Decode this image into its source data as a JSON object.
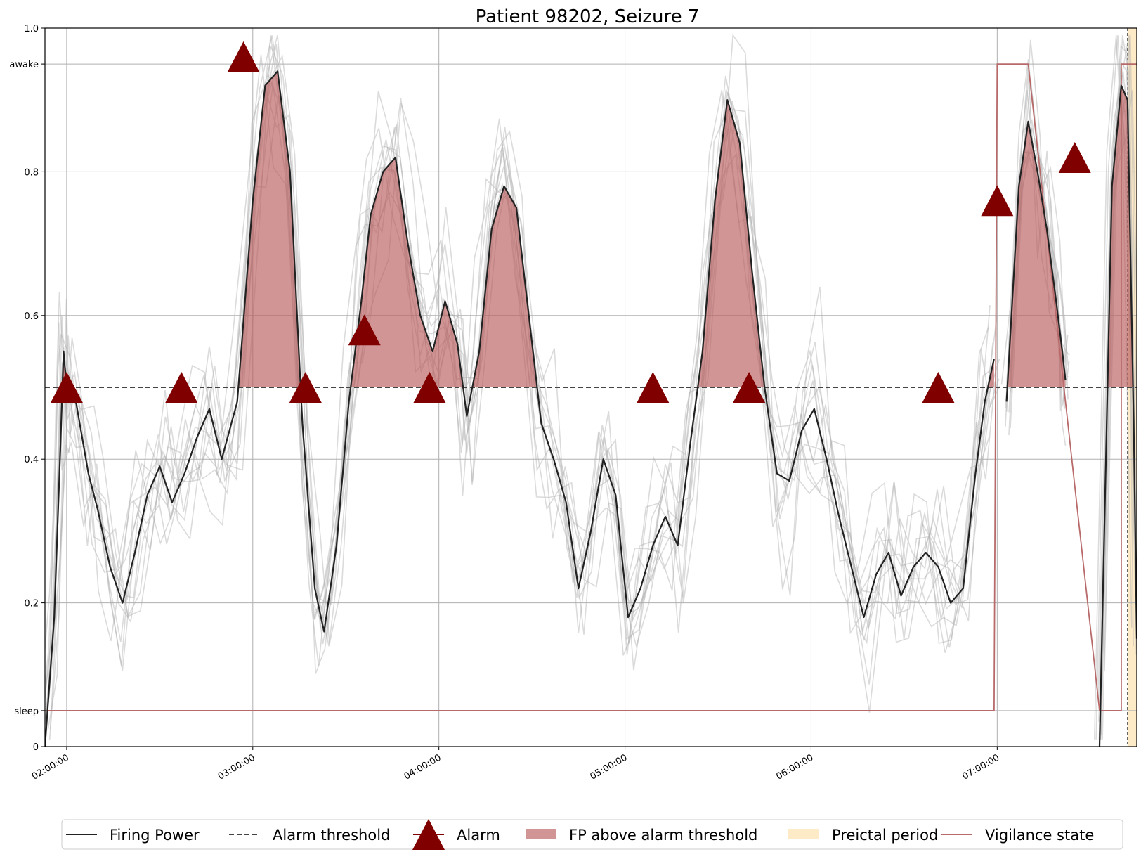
{
  "chart_data": {
    "type": "line",
    "title": "Patient 98202, Seizure 7",
    "xlabel": "",
    "ylabel": "",
    "ylim": [
      0,
      1.0
    ],
    "xlim": [
      "01:53:00",
      "07:45:00"
    ],
    "x_ticks": [
      "02:00:00",
      "03:00:00",
      "04:00:00",
      "05:00:00",
      "06:00:00",
      "07:00:00"
    ],
    "y_ticks": [
      {
        "value": 0,
        "label": "0"
      },
      {
        "value": 0.05,
        "label": "sleep"
      },
      {
        "value": 0.2,
        "label": "0.2"
      },
      {
        "value": 0.4,
        "label": "0.4"
      },
      {
        "value": 0.6,
        "label": "0.6"
      },
      {
        "value": 0.8,
        "label": "0.8"
      },
      {
        "value": 0.95,
        "label": "awake"
      },
      {
        "value": 1.0,
        "label": "1.0"
      }
    ],
    "grid": true,
    "legend_position": "bottom",
    "alarm_threshold": 0.5,
    "preictal_period": [
      "07:42:00",
      "07:45:00"
    ],
    "colors": {
      "firing_power": "#222222",
      "threshold": "#444444",
      "alarm": "#800000",
      "fill": "#b85c5c",
      "preictal": "#fdebc8",
      "vigilance": "#b86a6a",
      "other_runs": "#b0b0b0"
    },
    "series": [
      {
        "name": "Firing Power",
        "points": [
          [
            "01:53",
            "0.00"
          ],
          [
            "01:56",
            "0.18"
          ],
          [
            "01:58",
            "0.42"
          ],
          [
            "01:59",
            "0.55"
          ],
          [
            "02:00",
            "0.50"
          ],
          [
            "02:03",
            "0.48"
          ],
          [
            "02:07",
            "0.38"
          ],
          [
            "02:10",
            "0.33"
          ],
          [
            "02:14",
            "0.25"
          ],
          [
            "02:18",
            "0.20"
          ],
          [
            "02:22",
            "0.27"
          ],
          [
            "02:26",
            "0.35"
          ],
          [
            "02:30",
            "0.39"
          ],
          [
            "02:34",
            "0.34"
          ],
          [
            "02:38",
            "0.38"
          ],
          [
            "02:42",
            "0.43"
          ],
          [
            "02:46",
            "0.47"
          ],
          [
            "02:50",
            "0.40"
          ],
          [
            "02:55",
            "0.48"
          ],
          [
            "03:00",
            "0.76"
          ],
          [
            "03:04",
            "0.92"
          ],
          [
            "03:08",
            "0.94"
          ],
          [
            "03:12",
            "0.80"
          ],
          [
            "03:16",
            "0.45"
          ],
          [
            "03:20",
            "0.22"
          ],
          [
            "03:23",
            "0.16"
          ],
          [
            "03:27",
            "0.28"
          ],
          [
            "03:31",
            "0.48"
          ],
          [
            "03:35",
            "0.62"
          ],
          [
            "03:38",
            "0.74"
          ],
          [
            "03:42",
            "0.80"
          ],
          [
            "03:46",
            "0.82"
          ],
          [
            "03:50",
            "0.70"
          ],
          [
            "03:54",
            "0.60"
          ],
          [
            "03:58",
            "0.55"
          ],
          [
            "04:02",
            "0.62"
          ],
          [
            "04:06",
            "0.56"
          ],
          [
            "04:09",
            "0.46"
          ],
          [
            "04:13",
            "0.55"
          ],
          [
            "04:17",
            "0.72"
          ],
          [
            "04:21",
            "0.78"
          ],
          [
            "04:25",
            "0.75"
          ],
          [
            "04:29",
            "0.60"
          ],
          [
            "04:33",
            "0.45"
          ],
          [
            "04:37",
            "0.40"
          ],
          [
            "04:41",
            "0.34"
          ],
          [
            "04:45",
            "0.22"
          ],
          [
            "04:49",
            "0.30"
          ],
          [
            "04:53",
            "0.40"
          ],
          [
            "04:57",
            "0.35"
          ],
          [
            "05:01",
            "0.18"
          ],
          [
            "05:05",
            "0.22"
          ],
          [
            "05:09",
            "0.28"
          ],
          [
            "05:13",
            "0.32"
          ],
          [
            "05:17",
            "0.28"
          ],
          [
            "05:21",
            "0.42"
          ],
          [
            "05:25",
            "0.55"
          ],
          [
            "05:29",
            "0.76"
          ],
          [
            "05:33",
            "0.90"
          ],
          [
            "05:37",
            "0.84"
          ],
          [
            "05:41",
            "0.66"
          ],
          [
            "05:45",
            "0.50"
          ],
          [
            "05:49",
            "0.38"
          ],
          [
            "05:53",
            "0.37"
          ],
          [
            "05:57",
            "0.44"
          ],
          [
            "06:01",
            "0.47"
          ],
          [
            "06:05",
            "0.40"
          ],
          [
            "06:09",
            "0.32"
          ],
          [
            "06:13",
            "0.25"
          ],
          [
            "06:17",
            "0.18"
          ],
          [
            "06:21",
            "0.24"
          ],
          [
            "06:25",
            "0.27"
          ],
          [
            "06:29",
            "0.21"
          ],
          [
            "06:33",
            "0.25"
          ],
          [
            "06:37",
            "0.27"
          ],
          [
            "06:41",
            "0.25"
          ],
          [
            "06:45",
            "0.20"
          ],
          [
            "06:49",
            "0.22"
          ],
          [
            "06:53",
            "0.38"
          ],
          [
            "06:56",
            "0.48"
          ],
          [
            "06:59",
            "0.54"
          ]
        ]
      },
      {
        "name": "Firing Power",
        "points": [
          [
            "07:03",
            "0.48"
          ],
          [
            "07:07",
            "0.78"
          ],
          [
            "07:10",
            "0.87"
          ],
          [
            "07:13",
            "0.80"
          ],
          [
            "07:16",
            "0.72"
          ],
          [
            "07:19",
            "0.62"
          ],
          [
            "07:21",
            "0.55"
          ],
          [
            "07:22",
            "0.51"
          ]
        ]
      },
      {
        "name": "Firing Power",
        "points": [
          [
            "07:33",
            "0.00"
          ],
          [
            "07:37",
            "0.78"
          ],
          [
            "07:40",
            "0.92"
          ],
          [
            "07:42",
            "0.90"
          ],
          [
            "07:44",
            "0.45"
          ],
          [
            "07:45",
            "0.15"
          ]
        ]
      },
      {
        "name": "Vigilance state",
        "points": [
          [
            "01:53",
            "0.05"
          ],
          [
            "06:59",
            "0.05"
          ],
          [
            "07:00",
            "0.95"
          ],
          [
            "07:10",
            "0.95"
          ],
          [
            "07:33",
            "0.05"
          ],
          [
            "07:40",
            "0.05"
          ],
          [
            "07:40",
            "0.95"
          ],
          [
            "07:45",
            "0.95"
          ]
        ]
      },
      {
        "name": "Alarm",
        "points": [
          [
            "02:00",
            "0.50"
          ],
          [
            "02:37",
            "0.50"
          ],
          [
            "02:57",
            "0.96"
          ],
          [
            "03:17",
            "0.50"
          ],
          [
            "03:36",
            "0.58"
          ],
          [
            "03:57",
            "0.50"
          ],
          [
            "05:09",
            "0.50"
          ],
          [
            "05:40",
            "0.50"
          ],
          [
            "06:41",
            "0.50"
          ],
          [
            "07:00",
            "0.76"
          ],
          [
            "07:25",
            "0.82"
          ]
        ]
      }
    ],
    "legend": [
      {
        "label": "Firing Power",
        "kind": "line"
      },
      {
        "label": "Alarm threshold",
        "kind": "dashed"
      },
      {
        "label": "Alarm",
        "kind": "triangle"
      },
      {
        "label": "FP above alarm threshold",
        "kind": "fill"
      },
      {
        "label": "Preictal period",
        "kind": "preictal"
      },
      {
        "label": "Vigilance state",
        "kind": "vigilance"
      }
    ]
  }
}
